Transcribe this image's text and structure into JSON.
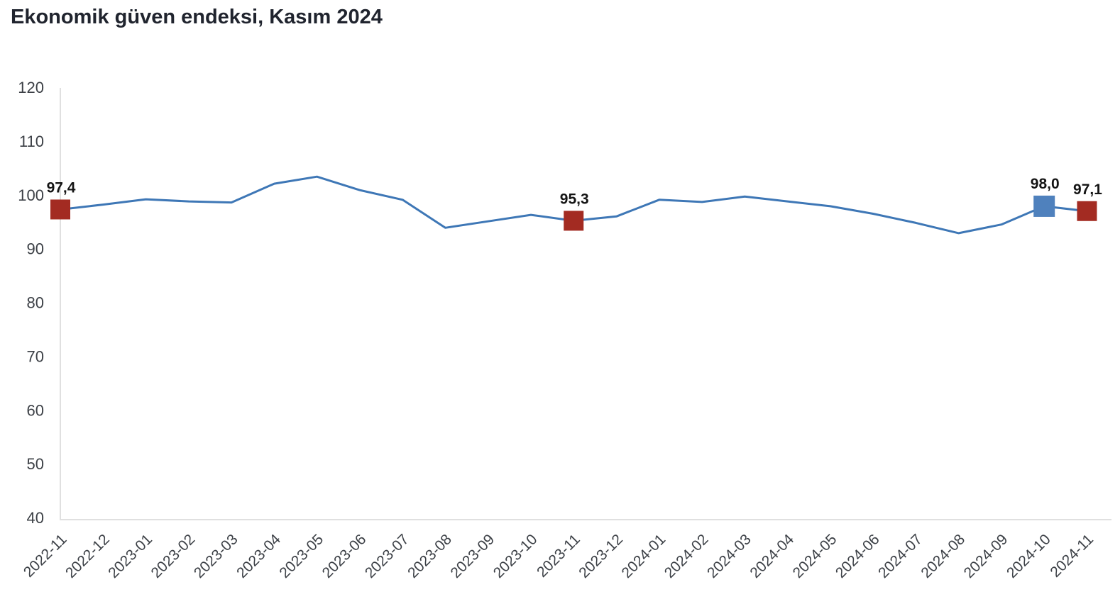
{
  "header": {
    "title": "Ekonomik güven endeksi, Kasım 2024"
  },
  "chart_data": {
    "type": "line",
    "title": "Ekonomik güven endeksi, Kasım 2024",
    "xlabel": "",
    "ylabel": "",
    "ylim": [
      40,
      120
    ],
    "ytick_step": 10,
    "grid": false,
    "legend": "none",
    "x": [
      "2022-11",
      "2022-12",
      "2023-01",
      "2023-02",
      "2023-03",
      "2023-04",
      "2023-05",
      "2023-06",
      "2023-07",
      "2023-08",
      "2023-09",
      "2023-10",
      "2023-11",
      "2023-12",
      "2024-01",
      "2024-02",
      "2024-03",
      "2024-04",
      "2024-05",
      "2024-06",
      "2024-07",
      "2024-08",
      "2024-09",
      "2024-10",
      "2024-11"
    ],
    "series": [
      {
        "name": "Ekonomik güven endeksi",
        "values": [
          97.4,
          98.3,
          99.3,
          98.9,
          98.7,
          102.2,
          103.5,
          101.0,
          99.2,
          94.0,
          95.2,
          96.4,
          95.3,
          96.1,
          99.2,
          98.8,
          99.8,
          98.9,
          98.0,
          96.6,
          94.9,
          93.0,
          94.6,
          98.0,
          97.1
        ]
      }
    ],
    "annotated_points": [
      {
        "x": "2022-11",
        "value": 97.4,
        "label": "97,4",
        "marker_color": "#a32b22"
      },
      {
        "x": "2023-11",
        "value": 95.3,
        "label": "95,3",
        "marker_color": "#a32b22"
      },
      {
        "x": "2024-10",
        "value": 98.0,
        "label": "98,0",
        "marker_color": "#4f81bd"
      },
      {
        "x": "2024-11",
        "value": 97.1,
        "label": "97,1",
        "marker_color": "#a32b22"
      }
    ],
    "colors": {
      "line": "#3e77b6",
      "marker_red": "#a32b22",
      "marker_blue": "#4f81bd",
      "axis_line": "#e0e0e0",
      "tick_text": "#3c4046",
      "point_label_text": "#141414",
      "title_text": "#20242e",
      "background": "#ffffff"
    }
  }
}
